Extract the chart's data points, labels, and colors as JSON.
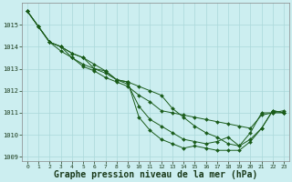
{
  "background_color": "#cceef0",
  "grid_color": "#aad8da",
  "line_color": "#1a5c1a",
  "marker_color": "#1a5c1a",
  "xlabel": "Graphe pression niveau de la mer (hPa)",
  "xlabel_fontsize": 7,
  "ylim_min": 1008.8,
  "ylim_max": 1016.0,
  "xlim_min": -0.5,
  "xlim_max": 23.5,
  "yticks": [
    1009,
    1010,
    1011,
    1012,
    1013,
    1014,
    1015
  ],
  "xticks": [
    0,
    1,
    2,
    3,
    4,
    5,
    6,
    7,
    8,
    9,
    10,
    11,
    12,
    13,
    14,
    15,
    16,
    17,
    18,
    19,
    20,
    21,
    22,
    23
  ],
  "series": [
    [
      1015.6,
      1014.9,
      1014.2,
      1013.8,
      1013.5,
      1013.1,
      1012.9,
      1012.6,
      1012.4,
      1012.2,
      1011.8,
      1011.5,
      1011.1,
      1011.0,
      1010.9,
      1010.8,
      1010.7,
      1010.6,
      1010.5,
      1010.4,
      1010.3,
      1010.9,
      1011.0,
      1011.0
    ],
    [
      1015.6,
      1014.9,
      1014.2,
      1014.0,
      1013.5,
      1013.2,
      1013.0,
      1012.8,
      1012.5,
      1012.4,
      1012.2,
      1012.0,
      1011.8,
      1011.2,
      1010.8,
      1010.4,
      1010.1,
      1009.9,
      1009.6,
      1009.5,
      1010.1,
      1011.0,
      1011.0,
      1011.1
    ],
    [
      1015.6,
      1014.9,
      1014.2,
      1014.0,
      1013.7,
      1013.5,
      1013.0,
      1012.9,
      1012.5,
      1012.3,
      1011.3,
      1010.7,
      1010.4,
      1010.1,
      1009.8,
      1009.7,
      1009.6,
      1009.7,
      1009.9,
      1009.5,
      1009.8,
      1010.3,
      1011.1,
      1011.0
    ],
    [
      1015.6,
      1014.9,
      1014.2,
      1014.0,
      1013.7,
      1013.5,
      1013.2,
      1012.9,
      1012.5,
      1012.4,
      1010.8,
      1010.2,
      1009.8,
      1009.6,
      1009.4,
      1009.5,
      1009.4,
      1009.3,
      1009.3,
      1009.3,
      1009.7,
      1010.3,
      1011.1,
      1011.0
    ]
  ]
}
